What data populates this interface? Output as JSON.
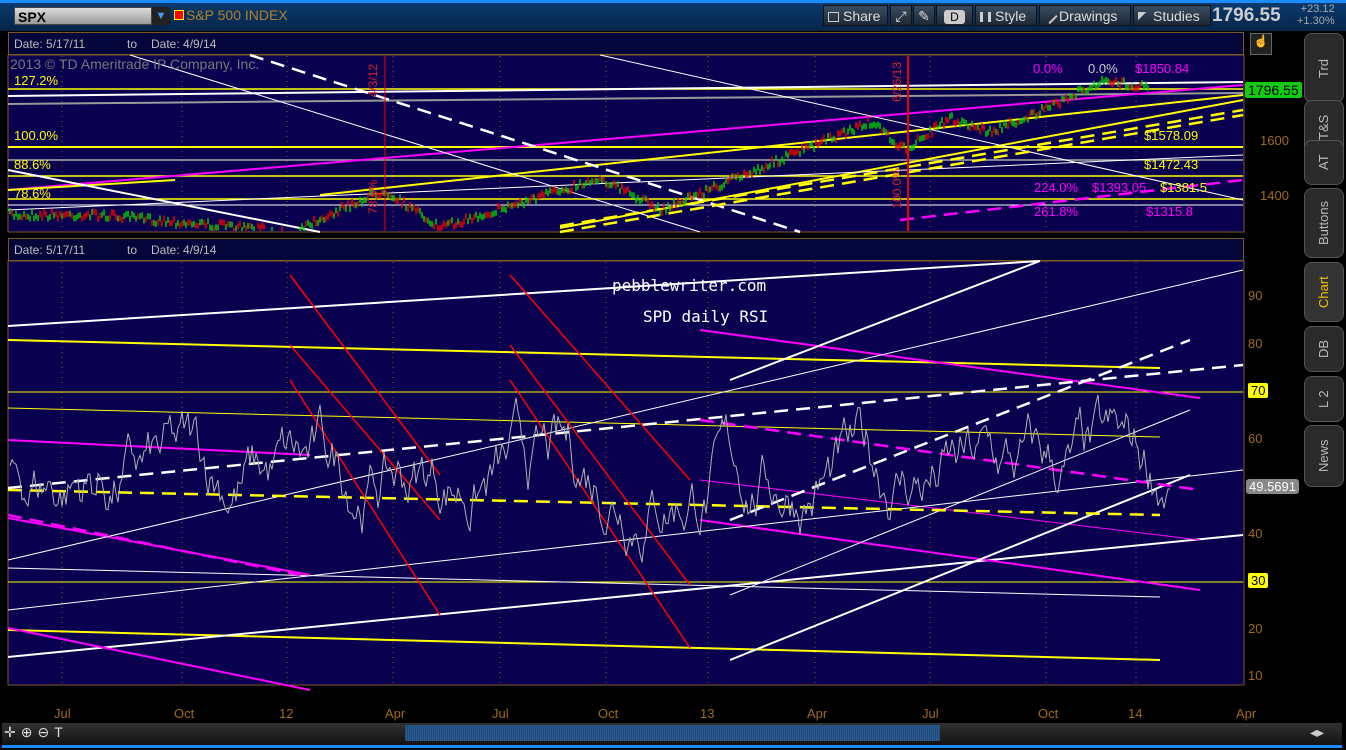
{
  "toolbar": {
    "symbol": "SPX",
    "symbol_name": "S&P 500 INDEX",
    "share": "Share",
    "period": "D",
    "style": "Style",
    "drawings": "Drawings",
    "studies": "Studies",
    "last_price": "1796.55",
    "change": "+23.12",
    "change_pct": "+1.30%"
  },
  "side_tabs": [
    "Trd",
    "T&S",
    "AT",
    "Buttons",
    "Chart",
    "DB",
    "L 2",
    "News"
  ],
  "active_tab": "Chart",
  "price_panel": {
    "date_from": "Date: 5/17/11",
    "to": "to",
    "date_to": "Date: 4/9/14",
    "copyright": "2013 © TD Ameritrade IP Company, Inc.",
    "fib_labels_left": [
      "127.2%",
      "100.0%",
      "88.6%",
      "78.6%"
    ],
    "fib_labels_right": [
      "0.0%",
      "0.0%",
      "$1850.84",
      "$1578.09",
      "$1472.43",
      "224.0%",
      "$1393.05",
      "$1381.5",
      "261.8%",
      "$1315.8"
    ],
    "vertical_labels": [
      "4/3/12",
      "78.6%",
      "6/26/13",
      "100.0%"
    ],
    "price_ticks": [
      "1600",
      "1400"
    ],
    "last_badge": "1796.55"
  },
  "rsi_panel": {
    "date_from": "Date: 5/17/11",
    "to": "to",
    "date_to": "Date: 4/9/14",
    "annotation_1": "pebblewriter.com",
    "annotation_2": "SPD daily RSI"
  },
  "chart_data": [
    {
      "type": "candlestick",
      "title": "S&P 500 INDEX",
      "symbol": "SPX",
      "last": 1796.55,
      "yticks": [
        1400,
        1600
      ],
      "grid": true
    },
    {
      "type": "line",
      "title": "SPD daily RSI",
      "ylim": [
        5,
        100
      ],
      "yticks": [
        10,
        20,
        30,
        40,
        50,
        60,
        70,
        80,
        90
      ],
      "levels": [
        30,
        70
      ],
      "last": 49.5691,
      "xticks": [
        "Jul",
        "Oct",
        "12",
        "Apr",
        "Jul",
        "Oct",
        "13",
        "Apr",
        "Jul",
        "Oct",
        "14",
        "Apr"
      ],
      "grid": true,
      "colors": {
        "rsi": "#b0b0b0",
        "levels": "#ffff00",
        "background": "#0a0050"
      }
    }
  ]
}
